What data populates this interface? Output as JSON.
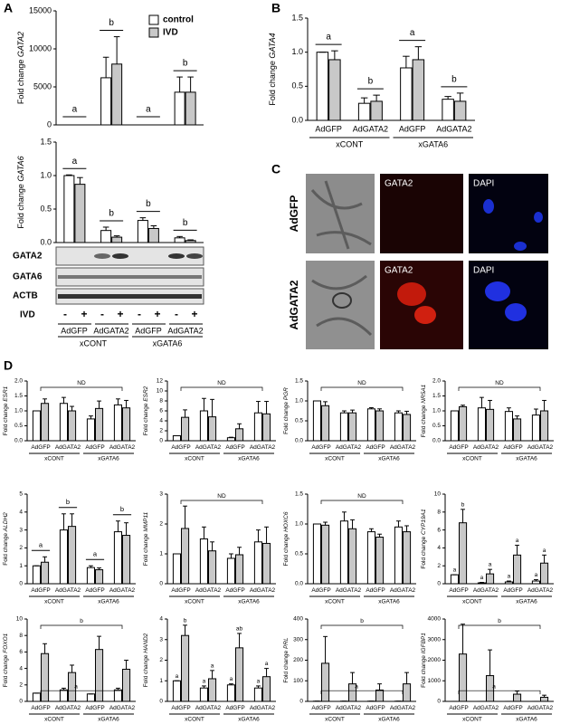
{
  "panels": [
    "A",
    "B",
    "C",
    "D"
  ],
  "blot": {
    "rows": [
      "GATA2",
      "GATA6",
      "ACTB"
    ],
    "treatment": "IVD",
    "signs": [
      "-",
      "+",
      "-",
      "+",
      "-",
      "+",
      "-",
      "+"
    ],
    "categories": [
      "AdGFP",
      "AdGATA2",
      "AdGFP",
      "AdGATA2"
    ],
    "groups": [
      "xCONT",
      "xGATA6"
    ]
  },
  "images": {
    "rows": [
      "AdGFP",
      "AdGATA2"
    ],
    "channels": [
      "GATA2",
      "DAPI"
    ]
  },
  "chart_data": [
    {
      "type": "bar",
      "ylabel": "Fold change",
      "gene": "GATA2",
      "ylim": [
        0,
        15000
      ],
      "yticks": [
        0,
        5000,
        10000,
        15000
      ],
      "legend": "top-right",
      "series": [
        {
          "name": "control",
          "color": "#ffffff",
          "values": [
            0,
            6200,
            0,
            4300
          ],
          "errors": [
            0,
            2700,
            0,
            2000
          ]
        },
        {
          "name": "IVD",
          "color": "#c8c8c8",
          "values": [
            0,
            8000,
            0,
            4300
          ],
          "errors": [
            0,
            3600,
            0,
            2000
          ]
        }
      ],
      "group_letters": [
        "a",
        "b",
        "a",
        "b"
      ]
    },
    {
      "type": "bar",
      "ylabel": "Fold change",
      "gene": "GATA6",
      "ylim": [
        0,
        1.5
      ],
      "yticks": [
        {
          "value": 0,
          "label": "0.0"
        },
        {
          "value": 0.5,
          "label": "0.5"
        },
        {
          "value": 1,
          "label": "1.0"
        },
        {
          "value": 1.5,
          "label": "1.5"
        }
      ],
      "series": [
        {
          "color": "#ffffff",
          "values": [
            1.0,
            0.18,
            0.33,
            0.07
          ],
          "errors": [
            0.01,
            0.05,
            0.04,
            0.02
          ]
        },
        {
          "color": "#c8c8c8",
          "values": [
            0.87,
            0.08,
            0.21,
            0.03
          ],
          "errors": [
            0.1,
            0.02,
            0.04,
            0.01
          ]
        }
      ],
      "group_letters": [
        "a",
        "b",
        "b",
        "b"
      ]
    },
    {
      "type": "bar",
      "ylabel": "Fold change",
      "gene": "GATA4",
      "ylim": [
        0,
        1.5
      ],
      "yticks": [
        {
          "value": 0,
          "label": "0.0"
        },
        {
          "value": 0.5,
          "label": "0.5"
        },
        {
          "value": 1,
          "label": "1.0"
        },
        {
          "value": 1.5,
          "label": "1.5"
        }
      ],
      "categories": [
        "AdGFP",
        "AdGATA2",
        "AdGFP",
        "AdGATA2"
      ],
      "groups": [
        "xCONT",
        "xGATA6"
      ],
      "series": [
        {
          "color": "#ffffff",
          "values": [
            1.0,
            0.25,
            0.77,
            0.31
          ],
          "errors": [
            0,
            0.08,
            0.17,
            0.04
          ]
        },
        {
          "color": "#c8c8c8",
          "values": [
            0.89,
            0.28,
            0.89,
            0.28
          ],
          "errors": [
            0.13,
            0.09,
            0.19,
            0.12
          ]
        }
      ],
      "group_letters": [
        "a",
        "b",
        "a",
        "b"
      ]
    },
    {
      "type": "bar",
      "ylabel": "Fold change",
      "gene": "ESR1",
      "ylim": [
        0,
        2
      ],
      "yticks": [
        {
          "value": 0,
          "label": "0.0"
        },
        {
          "value": 0.5,
          "label": "0.5"
        },
        {
          "value": 1,
          "label": "1.0"
        },
        {
          "value": 1.5,
          "label": "1.5"
        },
        {
          "value": 2,
          "label": "2.0"
        }
      ],
      "categories": [
        "AdGFP",
        "AdGATA2",
        "AdGFP",
        "AdGATA2"
      ],
      "groups": [
        "xCONT",
        "xGATA6"
      ],
      "series": [
        {
          "color": "#ffffff",
          "values": [
            1.0,
            1.25,
            0.73,
            1.2
          ],
          "errors": [
            0,
            0.2,
            0.1,
            0.2
          ]
        },
        {
          "color": "#c8c8c8",
          "values": [
            1.25,
            1.0,
            1.08,
            1.1
          ],
          "errors": [
            0.15,
            0.15,
            0.25,
            0.25
          ]
        }
      ],
      "brackets": [
        "ND"
      ]
    },
    {
      "type": "bar",
      "ylabel": "Fold change",
      "gene": "ESR2",
      "ylim": [
        0,
        12
      ],
      "yticks": [
        0,
        2,
        4,
        6,
        8,
        10,
        12
      ],
      "categories": [
        "AdGFP",
        "AdGATA2",
        "AdGFP",
        "AdGATA2"
      ],
      "groups": [
        "xCONT",
        "xGATA6"
      ],
      "series": [
        {
          "color": "#ffffff",
          "values": [
            1.0,
            6.0,
            0.6,
            5.6
          ],
          "errors": [
            0,
            2.5,
            0.1,
            2.3
          ]
        },
        {
          "color": "#c8c8c8",
          "values": [
            4.7,
            4.8,
            2.4,
            5.4
          ],
          "errors": [
            1.5,
            3.5,
            1.0,
            2.5
          ]
        }
      ],
      "brackets": [
        "ND"
      ]
    },
    {
      "type": "bar",
      "ylabel": "Fold change",
      "gene": "PGR",
      "ylim": [
        0,
        1.5
      ],
      "yticks": [
        {
          "value": 0,
          "label": "0.0"
        },
        {
          "value": 0.5,
          "label": "0.5"
        },
        {
          "value": 1,
          "label": "1.0"
        },
        {
          "value": 1.5,
          "label": "1.5"
        }
      ],
      "categories": [
        "AdGFP",
        "AdGATA2",
        "AdGFP",
        "AdGATA2"
      ],
      "groups": [
        "xCONT",
        "xGATA6"
      ],
      "series": [
        {
          "color": "#ffffff",
          "values": [
            1.0,
            0.7,
            0.8,
            0.7
          ],
          "errors": [
            0,
            0.05,
            0.03,
            0.05
          ]
        },
        {
          "color": "#c8c8c8",
          "values": [
            0.88,
            0.7,
            0.75,
            0.66
          ],
          "errors": [
            0.1,
            0.07,
            0.05,
            0.08
          ]
        }
      ],
      "brackets": [
        "ND"
      ]
    },
    {
      "type": "bar",
      "ylabel": "Fold change",
      "gene": "NR5A1",
      "ylim": [
        0,
        2
      ],
      "yticks": [
        {
          "value": 0,
          "label": "0.0"
        },
        {
          "value": 0.5,
          "label": "0.5"
        },
        {
          "value": 1,
          "label": "1.0"
        },
        {
          "value": 1.5,
          "label": "1.5"
        },
        {
          "value": 2,
          "label": "2.0"
        }
      ],
      "categories": [
        "AdGFP",
        "AdGATA2",
        "AdGFP",
        "AdGATA2"
      ],
      "groups": [
        "xCONT",
        "xGATA6"
      ],
      "series": [
        {
          "color": "#ffffff",
          "values": [
            1.0,
            1.1,
            0.98,
            0.86
          ],
          "errors": [
            0,
            0.35,
            0.12,
            0.2
          ]
        },
        {
          "color": "#c8c8c8",
          "values": [
            1.14,
            1.05,
            0.73,
            1.0
          ],
          "errors": [
            0.05,
            0.3,
            0.1,
            0.35
          ]
        }
      ],
      "brackets": [
        "ND"
      ]
    },
    {
      "type": "bar",
      "ylabel": "Fold change",
      "gene": "ALDH2",
      "ylim": [
        0,
        5
      ],
      "yticks": [
        0,
        1,
        2,
        3,
        4,
        5
      ],
      "categories": [
        "AdGFP",
        "AdGATA2",
        "AdGFP",
        "AdGATA2"
      ],
      "groups": [
        "xCONT",
        "xGATA6"
      ],
      "series": [
        {
          "color": "#ffffff",
          "values": [
            1.0,
            3.0,
            0.9,
            2.9
          ],
          "errors": [
            0,
            0.9,
            0.1,
            0.6
          ]
        },
        {
          "color": "#c8c8c8",
          "values": [
            1.2,
            3.2,
            0.78,
            2.7
          ],
          "errors": [
            0.3,
            0.7,
            0.1,
            0.7
          ]
        }
      ],
      "group_letters": [
        "a",
        "b",
        "a",
        "b"
      ]
    },
    {
      "type": "bar",
      "ylabel": "Fold change",
      "gene": "MMP11",
      "ylim": [
        0,
        3
      ],
      "yticks": [
        0,
        1,
        2,
        3
      ],
      "categories": [
        "AdGFP",
        "AdGATA2",
        "AdGFP",
        "AdGATA2"
      ],
      "groups": [
        "xCONT",
        "xGATA6"
      ],
      "series": [
        {
          "color": "#ffffff",
          "values": [
            1.0,
            1.5,
            0.85,
            1.4
          ],
          "errors": [
            0,
            0.4,
            0.15,
            0.4
          ]
        },
        {
          "color": "#c8c8c8",
          "values": [
            1.85,
            1.1,
            0.97,
            1.35
          ],
          "errors": [
            0.75,
            0.3,
            0.25,
            0.55
          ]
        }
      ],
      "brackets": [
        "ND"
      ]
    },
    {
      "type": "bar",
      "ylabel": "Fold change",
      "gene": "HOXC6",
      "ylim": [
        0,
        1.5
      ],
      "yticks": [
        {
          "value": 0,
          "label": "0.0"
        },
        {
          "value": 0.5,
          "label": "0.5"
        },
        {
          "value": 1,
          "label": "1.0"
        },
        {
          "value": 1.5,
          "label": "1.5"
        }
      ],
      "categories": [
        "AdGFP",
        "AdGATA2",
        "AdGFP",
        "AdGATA2"
      ],
      "groups": [
        "xCONT",
        "xGATA6"
      ],
      "series": [
        {
          "color": "#ffffff",
          "values": [
            1.0,
            1.05,
            0.87,
            0.95
          ],
          "errors": [
            0,
            0.15,
            0.05,
            0.1
          ]
        },
        {
          "color": "#c8c8c8",
          "values": [
            0.98,
            0.92,
            0.78,
            0.87
          ],
          "errors": [
            0.05,
            0.15,
            0.05,
            0.1
          ]
        }
      ],
      "brackets": [
        "ND"
      ]
    },
    {
      "type": "bar",
      "ylabel": "Fold change",
      "gene": "CYP19A1",
      "ylim": [
        0,
        10
      ],
      "yticks": [
        0,
        2,
        4,
        6,
        8,
        10
      ],
      "categories": [
        "AdGFP",
        "AdGATA2",
        "AdGFP",
        "AdGATA2"
      ],
      "groups": [
        "xCONT",
        "xGATA6"
      ],
      "series": [
        {
          "color": "#ffffff",
          "values": [
            1.0,
            0.1,
            0.2,
            0.3
          ],
          "errors": [
            0,
            0.05,
            0.1,
            0.15
          ],
          "letters": [
            "a",
            "a",
            "a",
            "a"
          ]
        },
        {
          "color": "#c8c8c8",
          "values": [
            6.8,
            1.1,
            3.2,
            2.3
          ],
          "errors": [
            1.5,
            0.5,
            1.1,
            0.9
          ],
          "letters": [
            "b",
            "a",
            "a",
            "a"
          ]
        }
      ]
    },
    {
      "type": "bar",
      "ylabel": "Fold change",
      "gene": "FOXO1",
      "ylim": [
        0,
        10
      ],
      "yticks": [
        0,
        2,
        4,
        6,
        8,
        10
      ],
      "categories": [
        "AdGFP",
        "AdGATA2",
        "AdGFP",
        "AdGATA2"
      ],
      "groups": [
        "xCONT",
        "xGATA6"
      ],
      "series": [
        {
          "color": "#ffffff",
          "values": [
            1.0,
            1.4,
            0.9,
            1.4
          ],
          "errors": [
            0,
            0.2,
            0,
            0.2
          ]
        },
        {
          "color": "#c8c8c8",
          "values": [
            5.8,
            3.5,
            6.3,
            3.9
          ],
          "errors": [
            1.2,
            0.9,
            1.6,
            1.1
          ]
        }
      ],
      "brackets": [
        "a",
        "b"
      ]
    },
    {
      "type": "bar",
      "ylabel": "Fold change",
      "gene": "HAND2",
      "ylim": [
        0,
        4
      ],
      "yticks": [
        0,
        1,
        2,
        3,
        4
      ],
      "categories": [
        "AdGFP",
        "AdGATA2",
        "AdGFP",
        "AdGATA2"
      ],
      "groups": [
        "xCONT",
        "xGATA6"
      ],
      "series": [
        {
          "color": "#ffffff",
          "values": [
            1.0,
            0.65,
            0.8,
            0.65
          ],
          "errors": [
            0,
            0.1,
            0.05,
            0.1
          ],
          "letters": [
            "a",
            "a",
            "a",
            "a"
          ]
        },
        {
          "color": "#c8c8c8",
          "values": [
            3.2,
            1.1,
            2.6,
            1.2
          ],
          "errors": [
            0.5,
            0.4,
            0.7,
            0.4
          ],
          "letters": [
            "b",
            "a",
            "ab",
            "a"
          ]
        }
      ]
    },
    {
      "type": "bar",
      "ylabel": "Fold change",
      "gene": "PRL",
      "ylim": [
        0,
        400
      ],
      "yticks": [
        0,
        100,
        200,
        300,
        400
      ],
      "categories": [
        "AdGFP",
        "AdGATA2",
        "AdGFP",
        "AdGATA2"
      ],
      "groups": [
        "xCONT",
        "xGATA6"
      ],
      "series": [
        {
          "color": "#ffffff",
          "values": [
            1,
            1,
            1,
            1
          ],
          "errors": [
            0,
            0,
            0,
            0
          ]
        },
        {
          "color": "#c8c8c8",
          "values": [
            185,
            85,
            55,
            85
          ],
          "errors": [
            130,
            55,
            30,
            55
          ]
        }
      ],
      "brackets": [
        "a",
        "b"
      ]
    },
    {
      "type": "bar",
      "ylabel": "Fold change",
      "gene": "IGFBP1",
      "ylim": [
        0,
        4000
      ],
      "yticks": [
        0,
        1000,
        2000,
        3000,
        4000
      ],
      "categories": [
        "AdGFP",
        "AdGATA2",
        "AdGFP",
        "AdGATA2"
      ],
      "groups": [
        "xCONT",
        "xGATA6"
      ],
      "series": [
        {
          "color": "#ffffff",
          "values": [
            1,
            1,
            1,
            1
          ],
          "errors": [
            0,
            0,
            0,
            0
          ]
        },
        {
          "color": "#c8c8c8",
          "values": [
            2300,
            1250,
            350,
            200
          ],
          "errors": [
            1450,
            1250,
            150,
            100
          ]
        }
      ],
      "brackets": [
        "a",
        "b"
      ]
    }
  ]
}
